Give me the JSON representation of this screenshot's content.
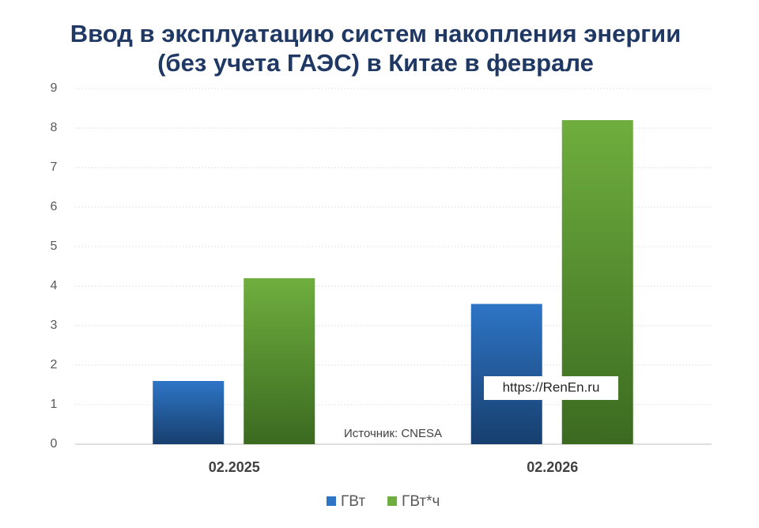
{
  "chart_data": {
    "type": "bar",
    "title": [
      "Ввод в эксплуатацию систем накопления энергии",
      "(без учета ГАЭС) в Китае в феврале"
    ],
    "categories": [
      "02.2025",
      "02.2026"
    ],
    "series": [
      {
        "name": "ГВт",
        "color": "#2e75c6",
        "values": [
          1.6,
          3.55
        ]
      },
      {
        "name": "ГВт*ч",
        "color": "#6fae3e",
        "values": [
          4.2,
          8.2
        ]
      }
    ],
    "ylim": [
      0,
      9
    ],
    "yticks": [
      0,
      1,
      2,
      3,
      4,
      5,
      6,
      7,
      8,
      9
    ],
    "grid": true,
    "legend": "bottom",
    "annotations": [
      "Источник: CNESA",
      "https://RenEn.ru"
    ]
  }
}
